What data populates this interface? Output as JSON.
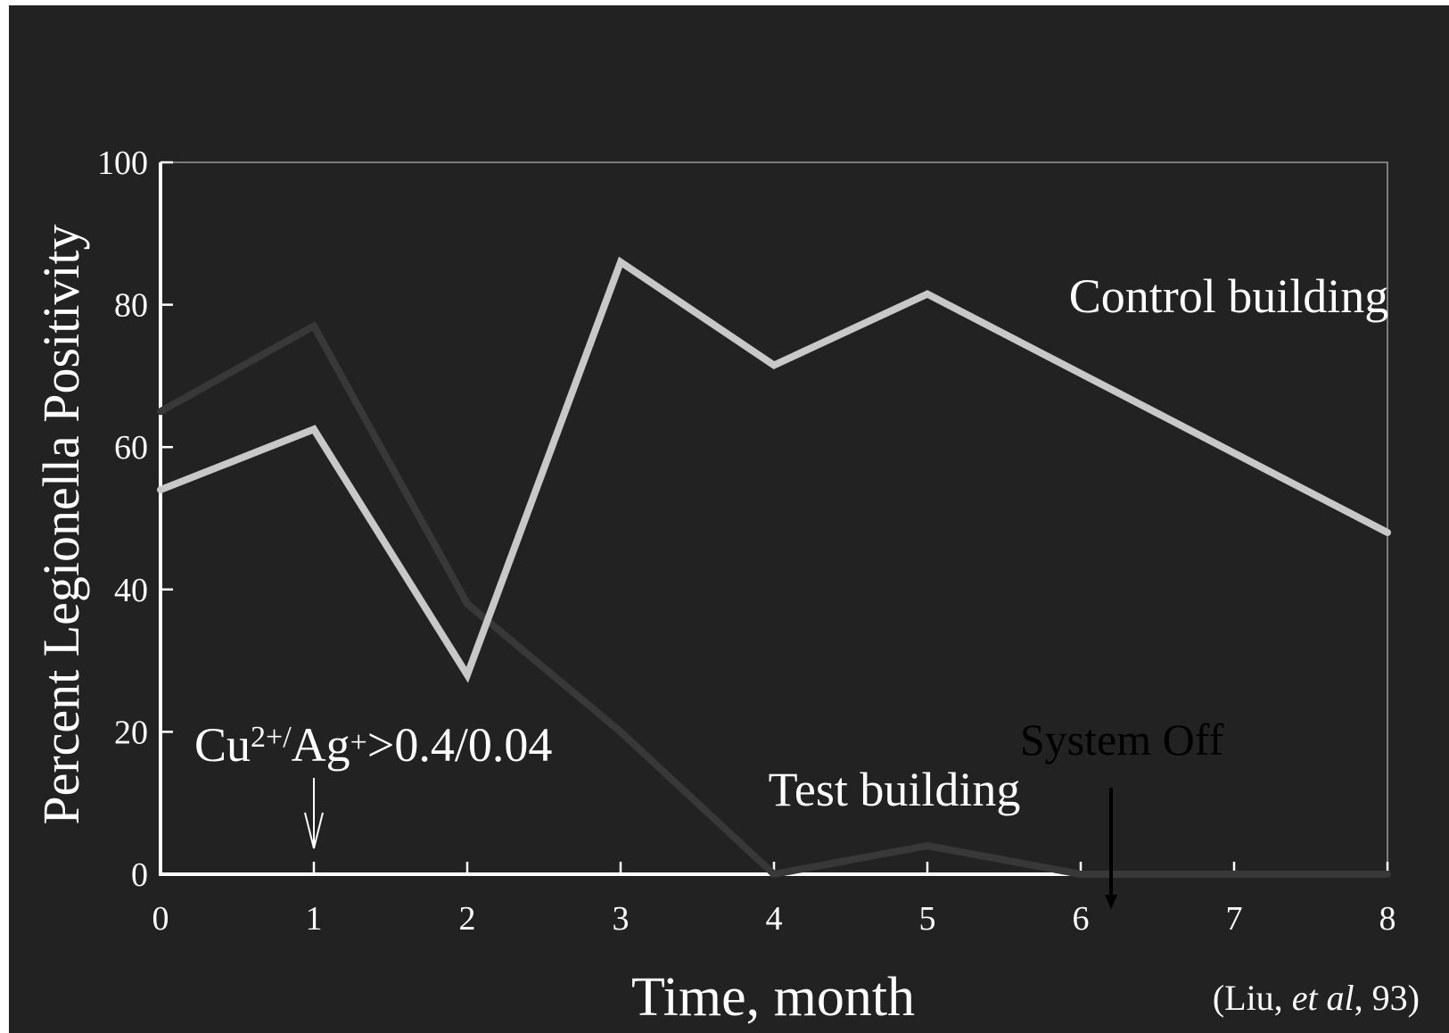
{
  "chart_data": {
    "type": "line",
    "title": "",
    "xlabel": "Time, month",
    "ylabel": "Percent Legionella Positivity",
    "xlim": [
      0,
      8
    ],
    "ylim": [
      0,
      100
    ],
    "x_ticks": [
      "0",
      "1",
      "2",
      "3",
      "4",
      "5",
      "6",
      "7",
      "8"
    ],
    "y_ticks": [
      "0",
      "20",
      "40",
      "60",
      "80",
      "100"
    ],
    "grid": false,
    "series": [
      {
        "name": "Control building",
        "color": "#c8c8c8",
        "x": [
          0,
          1,
          2,
          3,
          4,
          5,
          8
        ],
        "values": [
          54,
          62.5,
          28,
          86,
          71.5,
          81.5,
          48
        ]
      },
      {
        "name": "Test building",
        "color": "#383838",
        "x": [
          0,
          1,
          2,
          3,
          4,
          5,
          6,
          8
        ],
        "values": [
          65,
          77,
          38,
          20,
          0,
          4,
          0,
          0
        ]
      }
    ],
    "annotations": {
      "treatment": {
        "prefix": "Cu",
        "sup1": "2+",
        "slash": "/",
        "mid": "Ag",
        "sup2": "+",
        "suffix": ">0.4/0.04",
        "x": 1
      },
      "system_off": {
        "text": "System Off",
        "x": 6.22
      },
      "citation": {
        "before": "(Liu, ",
        "italic": "et al",
        "after": ", 93)"
      }
    }
  }
}
